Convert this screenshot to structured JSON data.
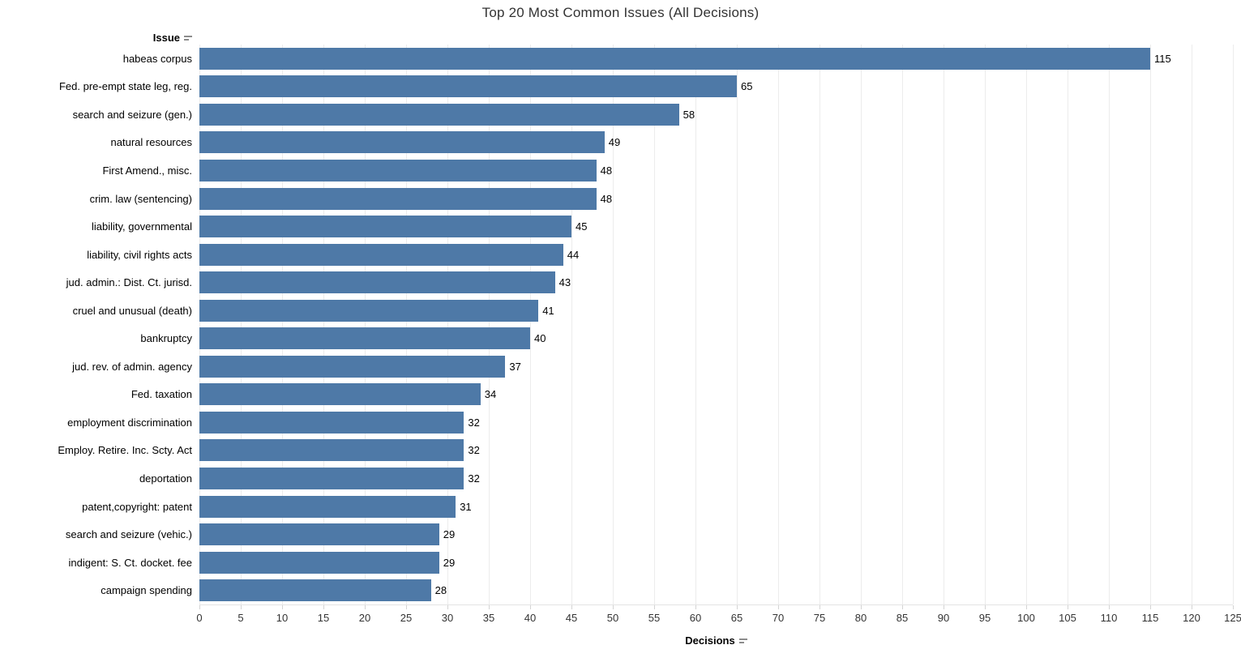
{
  "title": "Top 20 Most Common Issues (All Decisions)",
  "y_axis_header": "Issue",
  "x_axis_title": "Decisions",
  "colors": {
    "bar": "#4e79a7",
    "gridline": "#ececec",
    "title_text": "#333333",
    "label_text": "#000000",
    "sort_icon": "#8c8c8c"
  },
  "chart_data": {
    "type": "bar",
    "orientation": "horizontal",
    "title": "Top 20 Most Common Issues (All Decisions)",
    "xlabel": "Decisions",
    "ylabel": "Issue",
    "xlim": [
      0,
      125
    ],
    "x_ticks": [
      0,
      5,
      10,
      15,
      20,
      25,
      30,
      35,
      40,
      45,
      50,
      55,
      60,
      65,
      70,
      75,
      80,
      85,
      90,
      95,
      100,
      105,
      110,
      115,
      120,
      125
    ],
    "grid": "vertical-gridlines-at-ticks",
    "legend": "none",
    "bar_labels": "value-at-bar-end",
    "categories": [
      "habeas corpus",
      "Fed. pre-empt state leg, reg.",
      "search and seizure (gen.)",
      "natural resources",
      "First Amend., misc.",
      "crim. law (sentencing)",
      "liability, governmental",
      "liability, civil rights acts",
      "jud. admin.: Dist. Ct. jurisd.",
      "cruel and unusual (death)",
      "bankruptcy",
      "jud. rev. of admin. agency",
      "Fed. taxation",
      "employment discrimination",
      "Employ. Retire. Inc. Scty. Act",
      "deportation",
      "patent,copyright: patent",
      "search and seizure (vehic.)",
      "indigent: S. Ct. docket. fee",
      "campaign spending"
    ],
    "values": [
      115,
      65,
      58,
      49,
      48,
      48,
      45,
      44,
      43,
      41,
      40,
      37,
      34,
      32,
      32,
      32,
      31,
      29,
      29,
      28
    ]
  }
}
